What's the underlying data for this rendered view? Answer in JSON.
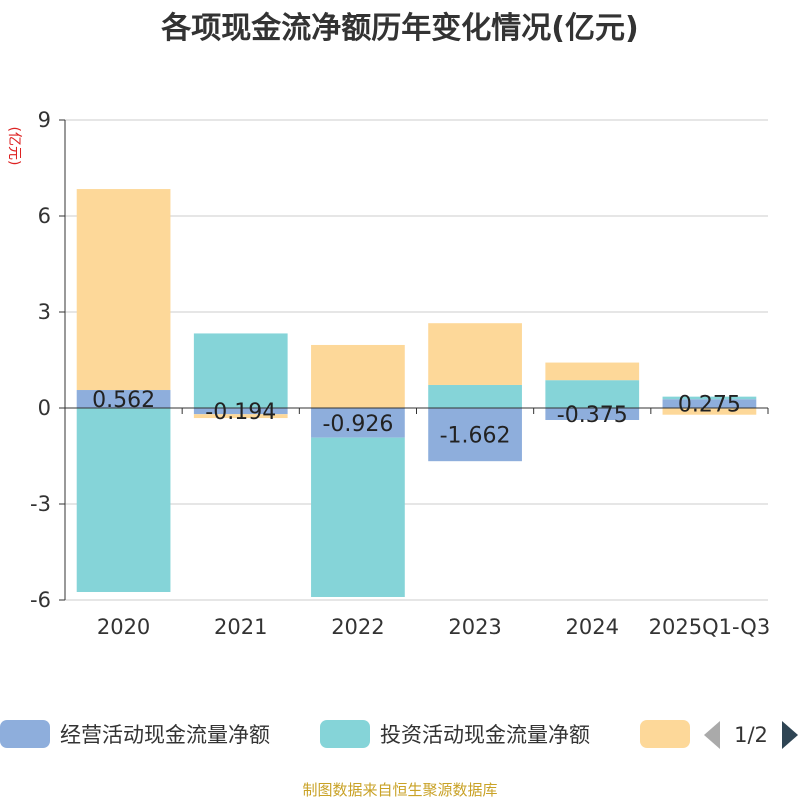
{
  "chart_data": {
    "type": "bar",
    "stacked": true,
    "title": "各项现金流净额历年变化情况(亿元)",
    "ylabel": "(亿元)",
    "xlabel": "",
    "categories": [
      "2020",
      "2021",
      "2022",
      "2023",
      "2024",
      "2025Q1-Q3"
    ],
    "ylim": [
      -6,
      9
    ],
    "yticks": [
      9,
      6,
      3,
      0,
      -3,
      -6
    ],
    "grid": true,
    "series": [
      {
        "name": "经营活动现金流量净额",
        "color": "#8eaedc",
        "values": [
          0.562,
          -0.194,
          -0.926,
          -1.662,
          -0.375,
          0.275
        ],
        "show_labels": true
      },
      {
        "name": "投资活动现金流量净额",
        "color": "#85d4d8",
        "values": [
          -5.75,
          2.33,
          -4.98,
          0.72,
          0.87,
          0.08
        ],
        "show_labels": false
      },
      {
        "name": "",
        "color": "#fdd899",
        "values": [
          6.28,
          -0.12,
          1.97,
          1.93,
          0.55,
          -0.21
        ],
        "show_labels": false
      }
    ],
    "legend": {
      "position": "bottom",
      "page": "1/2"
    }
  },
  "source": "制图数据来自恒生聚源数据库"
}
